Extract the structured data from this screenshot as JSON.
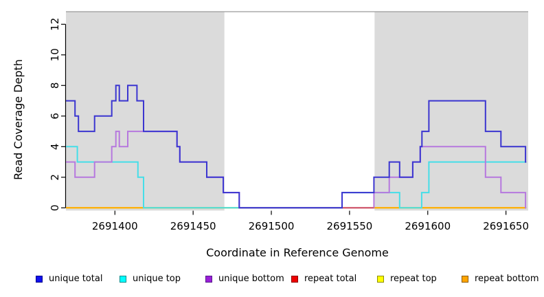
{
  "chart_data": {
    "type": "line",
    "subtype": "step-coverage-plot",
    "title": "",
    "xlabel": "Coordinate in Reference Genome",
    "ylabel": "Read Coverage Depth",
    "xlim": [
      2691368.7,
      2691663
    ],
    "ylim": [
      0,
      12.8
    ],
    "x_ticks": [
      2691400,
      2691450,
      2691500,
      2691550,
      2691600,
      2691650
    ],
    "y_ticks": [
      0,
      2,
      4,
      6,
      8,
      10,
      12
    ],
    "grid": false,
    "legend_position": "bottom",
    "shaded_regions": {
      "color": "#DBDBDB",
      "note": "repeat regions shading",
      "ranges": [
        [
          2691368.7,
          2691470
        ],
        [
          2691566,
          2691665
        ]
      ]
    },
    "top_border_color": "#999999",
    "series": [
      {
        "name": "unique total",
        "color": "#3B35D0",
        "draw_order": 6,
        "steps": [
          [
            2691368.7,
            7
          ],
          [
            2691374.5,
            6
          ],
          [
            2691376.7,
            5
          ],
          [
            2691387,
            6
          ],
          [
            2691398,
            7
          ],
          [
            2691400.6,
            8
          ],
          [
            2691402.8,
            7
          ],
          [
            2691408.2,
            8
          ],
          [
            2691414.1,
            7
          ],
          [
            2691418.3,
            5
          ],
          [
            2691439.7,
            4
          ],
          [
            2691441.5,
            3
          ],
          [
            2691458.7,
            2
          ],
          [
            2691469.3,
            1
          ],
          [
            2691479.5,
            0
          ],
          [
            2691545.2,
            1
          ],
          [
            2691565.6,
            2
          ],
          [
            2691575.4,
            3
          ],
          [
            2691582,
            2
          ],
          [
            2691590.4,
            3
          ],
          [
            2691595.2,
            4
          ],
          [
            2691596.3,
            5
          ],
          [
            2691600.7,
            7
          ],
          [
            2691636.9,
            5
          ],
          [
            2691646.8,
            4
          ],
          [
            2691662.5,
            3
          ],
          [
            2691663,
            3
          ]
        ]
      },
      {
        "name": "unique top",
        "color": "#45DEE8",
        "draw_order": 3,
        "steps": [
          [
            2691368.7,
            4
          ],
          [
            2691376,
            3
          ],
          [
            2691414.7,
            2
          ],
          [
            2691418.3,
            0
          ],
          [
            2691545.2,
            1
          ],
          [
            2691582,
            0
          ],
          [
            2691596.1,
            1
          ],
          [
            2691600.7,
            3
          ],
          [
            2691663,
            3
          ]
        ]
      },
      {
        "name": "unique bottom",
        "color": "#B678DE",
        "draw_order": 4,
        "steps": [
          [
            2691368.7,
            3
          ],
          [
            2691374.5,
            2
          ],
          [
            2691387,
            3
          ],
          [
            2691398,
            4
          ],
          [
            2691400.6,
            5
          ],
          [
            2691402.8,
            4
          ],
          [
            2691408.2,
            5
          ],
          [
            2691439.7,
            4
          ],
          [
            2691441.5,
            3
          ],
          [
            2691458.7,
            2
          ],
          [
            2691469.3,
            1
          ],
          [
            2691479.5,
            0
          ],
          [
            2691565.6,
            1
          ],
          [
            2691575.4,
            2
          ],
          [
            2691590.4,
            3
          ],
          [
            2691595.2,
            4
          ],
          [
            2691636.9,
            2
          ],
          [
            2691646.8,
            1
          ],
          [
            2691662.5,
            0
          ],
          [
            2691663,
            0
          ]
        ]
      },
      {
        "name": "repeat total",
        "color": "#D25672",
        "draw_order": 5,
        "steps": [
          [
            2691545.2,
            0
          ],
          [
            2691565.6,
            0
          ]
        ]
      },
      {
        "name": "repeat top",
        "color": "#FFFF00",
        "draw_order": 1,
        "steps": [
          [
            2691368.7,
            0
          ],
          [
            2691663,
            0
          ]
        ]
      },
      {
        "name": "repeat bottom",
        "color": "#FFA500",
        "draw_order": 2,
        "steps": [
          [
            2691368.7,
            0
          ],
          [
            2691663,
            0
          ]
        ]
      }
    ],
    "legend": [
      {
        "label": "unique total",
        "fill": "#1111EE",
        "border": "#00008B"
      },
      {
        "label": "unique top",
        "fill": "#00FFFF",
        "border": "#008B8B"
      },
      {
        "label": "unique bottom",
        "fill": "#9B1FD8",
        "border": "#551A8B"
      },
      {
        "label": "repeat total",
        "fill": "#EE0000",
        "border": "#8B0000"
      },
      {
        "label": "repeat top",
        "fill": "#FFFF00",
        "border": "#8B8B00"
      },
      {
        "label": "repeat bottom",
        "fill": "#FFA500",
        "border": "#8B5A00"
      }
    ]
  }
}
